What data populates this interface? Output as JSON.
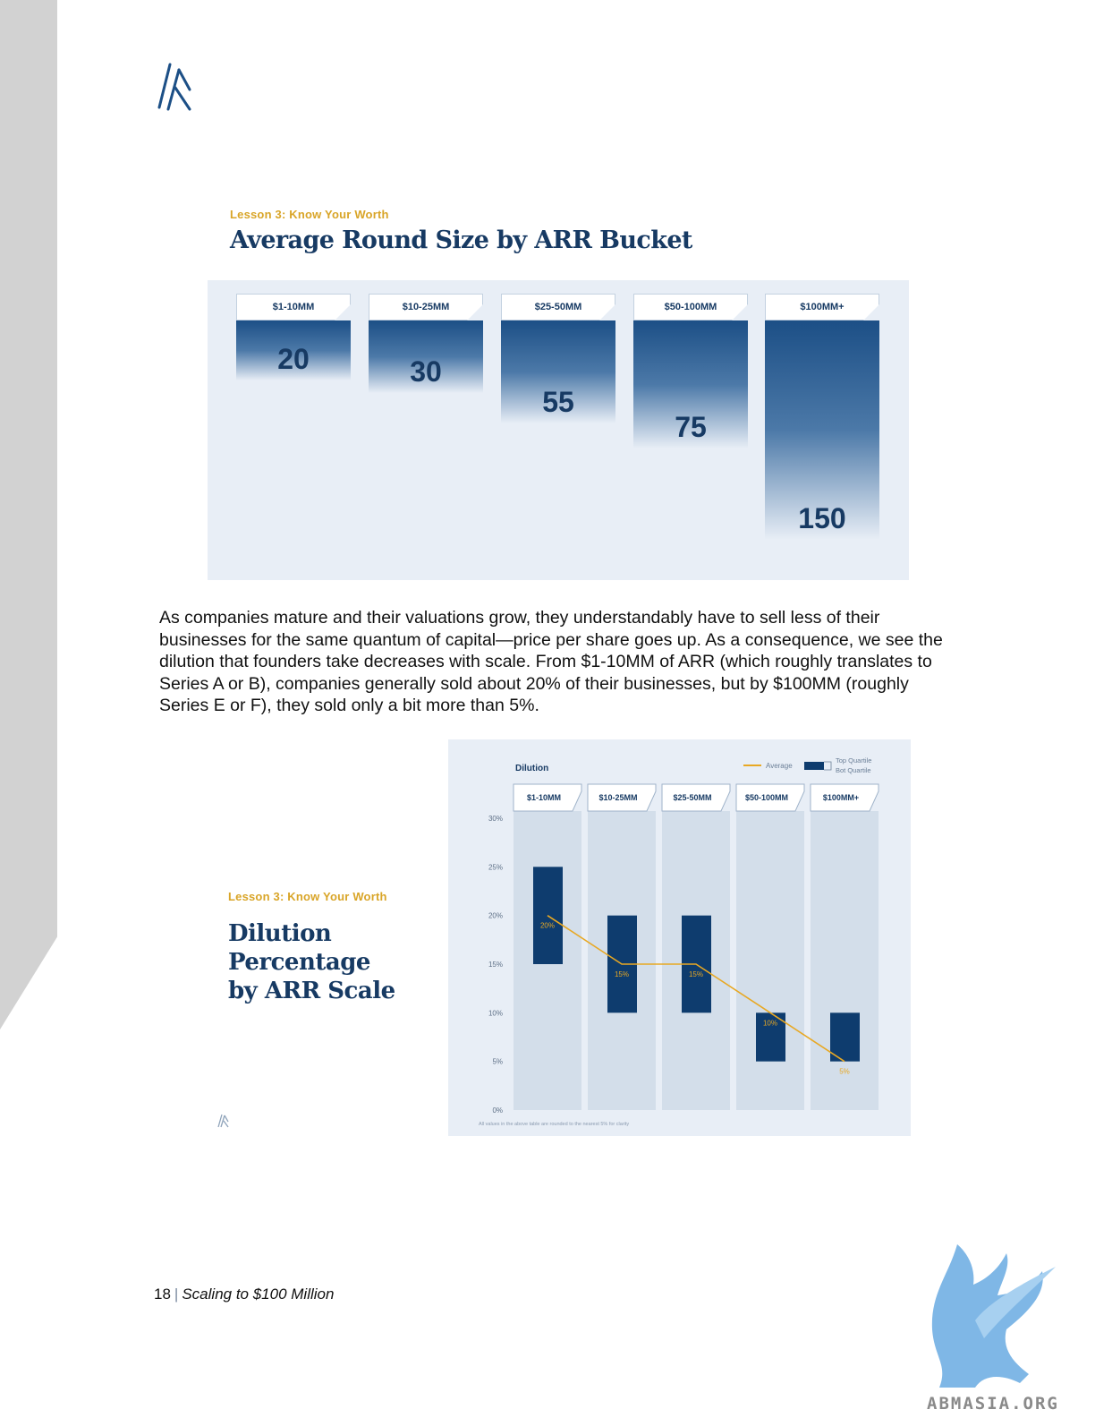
{
  "figure1": {
    "lesson": "Lesson 3: Know Your Worth",
    "title": "Average Round Size by ARR Bucket",
    "chart_data": {
      "type": "bar",
      "title": "Average Round Size by ARR Bucket",
      "categories": [
        "$1-10MM",
        "$10-25MM",
        "$25-50MM",
        "$50-100MM",
        "$100MM+"
      ],
      "values": [
        20,
        30,
        55,
        75,
        150
      ]
    }
  },
  "paragraph": "As companies mature and their valuations grow, they understandably have to sell less of their businesses for the same quantum of capital—price per share goes up. As a consequence, we see the dilution that founders take decreases with scale. From $1-10MM of ARR (which roughly translates to Series A or B), companies generally sold about 20% of their businesses, but by $100MM (roughly Series E or F), they sold only a bit more than 5%.",
  "figure2": {
    "lesson": "Lesson 3: Know Your Worth",
    "title_lines": [
      "Dilution",
      "Percentage",
      "by ARR Scale"
    ],
    "footnote": "All values in the above table are rounded to the nearest 5% for clarity",
    "chart_data": {
      "type": "bar",
      "title": "Dilution",
      "categories": [
        "$1-10MM",
        "$10-25MM",
        "$25-50MM",
        "$50-100MM",
        "$100MM+"
      ],
      "yticks": [
        "0%",
        "5%",
        "10%",
        "15%",
        "20%",
        "25%",
        "30%"
      ],
      "ylim": [
        0,
        30
      ],
      "legend": {
        "average": "Average",
        "top": "Top Quartile",
        "bot": "Bot Quartile",
        "position": "top-right"
      },
      "series": [
        {
          "name": "Top Quartile",
          "values": [
            25,
            20,
            20,
            10,
            10
          ]
        },
        {
          "name": "Bot Quartile",
          "values": [
            15,
            10,
            10,
            5,
            5
          ]
        },
        {
          "name": "Average",
          "values": [
            20,
            15,
            15,
            10,
            5
          ]
        }
      ],
      "average_labels": [
        "20%",
        "15%",
        "15%",
        "10%",
        "5%"
      ],
      "colors": {
        "bar": "#0e3c6e",
        "average": "#e8a823",
        "column": "#d3deea",
        "tab_border": "#9fb3c9"
      }
    }
  },
  "footer": {
    "page": "18",
    "separator": "|",
    "book": "Scaling to $100 Million"
  },
  "watermark": {
    "text": "ABMASIA.ORG",
    "icon": "griffin-icon"
  }
}
